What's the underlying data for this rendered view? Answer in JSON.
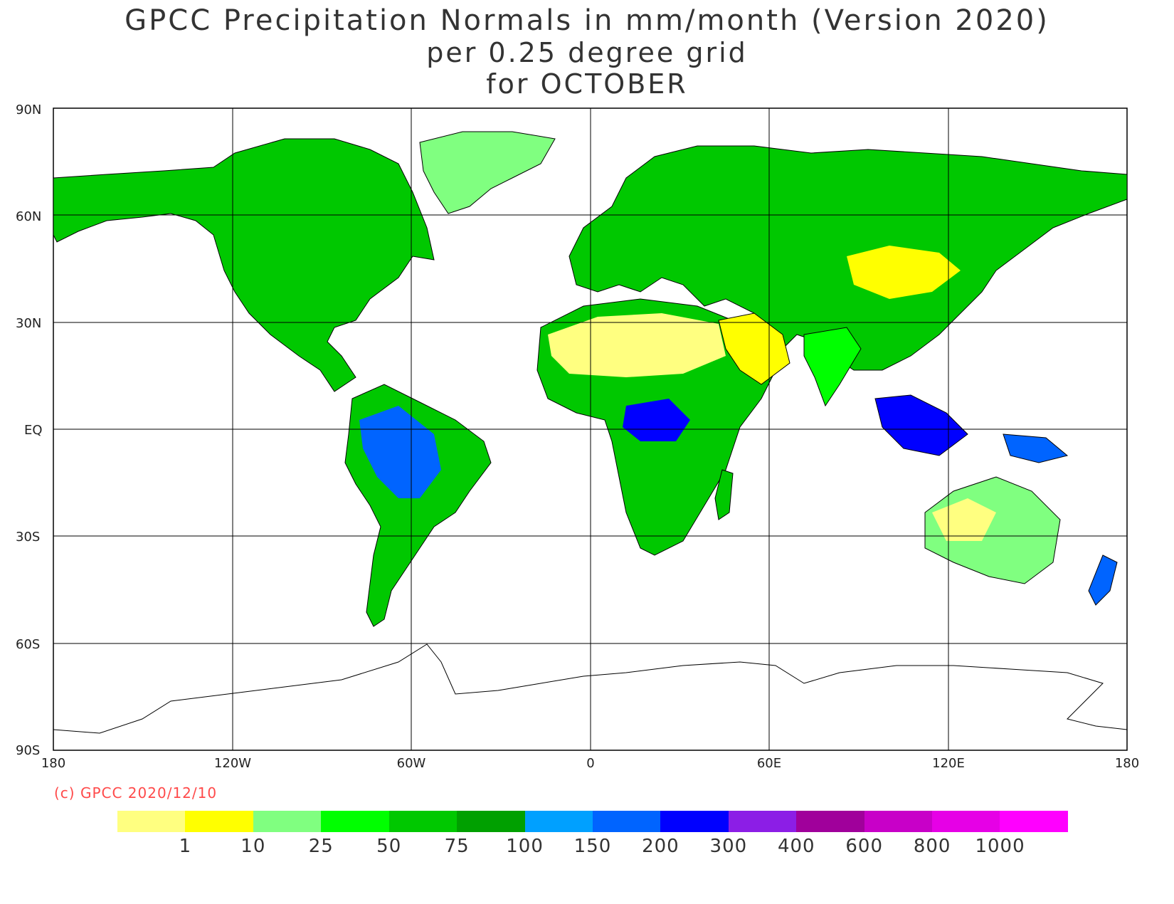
{
  "title": {
    "line1": "GPCC Precipitation Normals in mm/month (Version 2020)",
    "line2": "per 0.25 degree grid",
    "line3": "for OCTOBER"
  },
  "map": {
    "lat_labels": [
      "90N",
      "60N",
      "30N",
      "EQ",
      "30S",
      "60S",
      "90S"
    ],
    "lon_labels": [
      "180",
      "120W",
      "60W",
      "0",
      "60E",
      "120E",
      "180"
    ],
    "land_color": "#00b400",
    "ocean_color": "#ffffff"
  },
  "copyright": "(c) GPCC 2020/12/10",
  "legend": {
    "colors": [
      "#ffff80",
      "#ffff00",
      "#80ff80",
      "#00ff00",
      "#00c800",
      "#00a000",
      "#00a0ff",
      "#0064ff",
      "#0000ff",
      "#8c1ee6",
      "#a0009b",
      "#c800c8",
      "#e600e6",
      "#ff00ff"
    ],
    "labels": [
      "1",
      "10",
      "25",
      "50",
      "75",
      "100",
      "150",
      "200",
      "300",
      "400",
      "600",
      "800",
      "1000"
    ]
  }
}
